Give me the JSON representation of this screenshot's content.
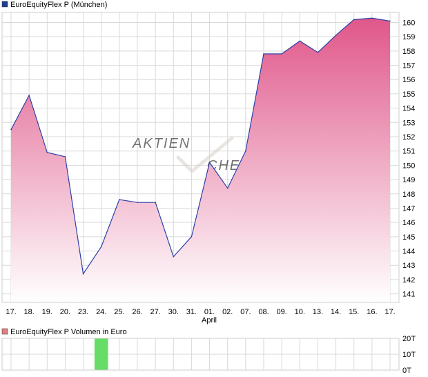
{
  "legend": {
    "price": {
      "label": "EuroEquityFlex P (München)",
      "color": "#1c3f94"
    },
    "volume": {
      "label": "EuroEquityFlex P Volumen in Euro",
      "color": "#e08080"
    }
  },
  "watermark": {
    "text": "AKTIEN",
    "text2": "CHECK"
  },
  "month_label": "April",
  "colors": {
    "line": "#2b3fa8",
    "fill_top": "#e0578a",
    "fill_bottom": "#ffffff",
    "grid": "#d9d9d9",
    "volume_bar": "#66dd66"
  },
  "chart_data": [
    {
      "type": "area",
      "series": [
        {
          "name": "EuroEquityFlex P (München)",
          "values": [
            152.5,
            154.9,
            150.9,
            150.6,
            142.4,
            144.3,
            147.6,
            147.4,
            147.4,
            143.6,
            145.0,
            150.2,
            148.4,
            151.0,
            157.8,
            157.8,
            158.7,
            157.9,
            159.1,
            160.2,
            160.3,
            160.1
          ]
        }
      ],
      "categories": [
        "17.",
        "18.",
        "19.",
        "20.",
        "23.",
        "24.",
        "25.",
        "26.",
        "27.",
        "30.",
        "31.",
        "01.",
        "02.",
        "07.",
        "08.",
        "09.",
        "10.",
        "13.",
        "14.",
        "15.",
        "16.",
        "17."
      ],
      "ylim": [
        140.4,
        160.7
      ],
      "yticks": [
        141,
        142,
        143,
        144,
        145,
        146,
        147,
        148,
        149,
        150,
        151,
        152,
        153,
        154,
        155,
        156,
        157,
        158,
        159,
        160
      ],
      "ylabel_side": "right",
      "grid": true
    },
    {
      "type": "bar",
      "title": "EuroEquityFlex P Volumen in Euro",
      "categories": [
        "17.",
        "18.",
        "19.",
        "20.",
        "23.",
        "24.",
        "25.",
        "26.",
        "27.",
        "30.",
        "31.",
        "01.",
        "02.",
        "07.",
        "08.",
        "09.",
        "10.",
        "13.",
        "14.",
        "15.",
        "16.",
        "17."
      ],
      "values": [
        0,
        0,
        0,
        0,
        0,
        20,
        0,
        0,
        0,
        0,
        0,
        0,
        0,
        0,
        0,
        0,
        0,
        0,
        0,
        0,
        0,
        0
      ],
      "unit": "T",
      "ylim": [
        0,
        20
      ],
      "yticks": [
        "0T",
        "10T",
        "20T"
      ],
      "grid": true
    }
  ]
}
